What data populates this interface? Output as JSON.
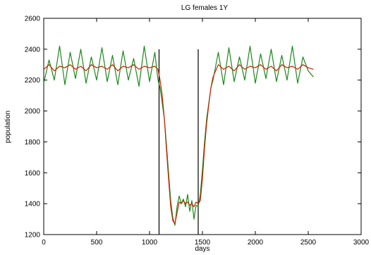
{
  "chart_data": {
    "type": "line",
    "title": "LG females 1Y",
    "xlabel": "days",
    "ylabel": "population",
    "xlim": [
      0,
      3000
    ],
    "ylim": [
      1200,
      2600
    ],
    "xticks": [
      0,
      500,
      1000,
      1500,
      2000,
      2500,
      3000
    ],
    "yticks": [
      1200,
      1400,
      1600,
      1800,
      2000,
      2200,
      2400,
      2600
    ],
    "grid": false,
    "legend": "none",
    "series": [
      {
        "color": "#1a8a1a",
        "x": [
          0,
          50,
          100,
          150,
          200,
          250,
          300,
          350,
          400,
          450,
          500,
          550,
          600,
          650,
          700,
          750,
          800,
          850,
          900,
          950,
          1000,
          1050,
          1080,
          1100,
          1120,
          1140,
          1160,
          1180,
          1200,
          1220,
          1240,
          1260,
          1280,
          1300,
          1320,
          1340,
          1360,
          1380,
          1400,
          1420,
          1440,
          1460,
          1480,
          1500,
          1520,
          1540,
          1560,
          1580,
          1600,
          1650,
          1700,
          1750,
          1800,
          1850,
          1900,
          1950,
          2000,
          2050,
          2100,
          2150,
          2200,
          2250,
          2300,
          2350,
          2400,
          2450,
          2500,
          2550
        ],
        "values": [
          2180,
          2330,
          2200,
          2420,
          2170,
          2380,
          2210,
          2400,
          2180,
          2350,
          2200,
          2410,
          2190,
          2360,
          2170,
          2390,
          2200,
          2340,
          2160,
          2420,
          2190,
          2380,
          2200,
          2150,
          2050,
          1950,
          1780,
          1600,
          1420,
          1310,
          1260,
          1380,
          1450,
          1400,
          1430,
          1380,
          1460,
          1350,
          1420,
          1300,
          1390,
          1380,
          1460,
          1620,
          1800,
          1950,
          2050,
          2150,
          2200,
          2380,
          2170,
          2410,
          2190,
          2350,
          2200,
          2420,
          2180,
          2370,
          2210,
          2400,
          2190,
          2360,
          2200,
          2420,
          2180,
          2350,
          2260,
          2220
        ]
      },
      {
        "color": "#cc2200",
        "x": [
          0,
          50,
          100,
          150,
          200,
          250,
          300,
          350,
          400,
          450,
          500,
          550,
          600,
          650,
          700,
          750,
          800,
          850,
          900,
          950,
          1000,
          1050,
          1080,
          1100,
          1120,
          1140,
          1160,
          1180,
          1200,
          1220,
          1240,
          1260,
          1280,
          1300,
          1320,
          1340,
          1360,
          1380,
          1400,
          1420,
          1440,
          1460,
          1480,
          1500,
          1520,
          1540,
          1560,
          1580,
          1600,
          1650,
          1700,
          1750,
          1800,
          1850,
          1900,
          1950,
          2000,
          2050,
          2100,
          2150,
          2200,
          2250,
          2300,
          2350,
          2400,
          2450,
          2500,
          2550
        ],
        "values": [
          2270,
          2300,
          2260,
          2290,
          2280,
          2300,
          2270,
          2290,
          2260,
          2300,
          2280,
          2290,
          2270,
          2300,
          2260,
          2290,
          2280,
          2300,
          2270,
          2290,
          2280,
          2290,
          2270,
          2200,
          2100,
          1950,
          1750,
          1560,
          1380,
          1290,
          1270,
          1340,
          1410,
          1400,
          1420,
          1400,
          1410,
          1390,
          1400,
          1380,
          1410,
          1400,
          1420,
          1560,
          1760,
          1920,
          2040,
          2150,
          2220,
          2300,
          2270,
          2290,
          2260,
          2300,
          2270,
          2290,
          2280,
          2300,
          2270,
          2290,
          2260,
          2300,
          2280,
          2290,
          2270,
          2300,
          2280,
          2270
        ]
      }
    ],
    "vlines": [
      {
        "x": 1090,
        "y_top": 2400
      },
      {
        "x": 1460,
        "y_top": 2400
      }
    ]
  }
}
